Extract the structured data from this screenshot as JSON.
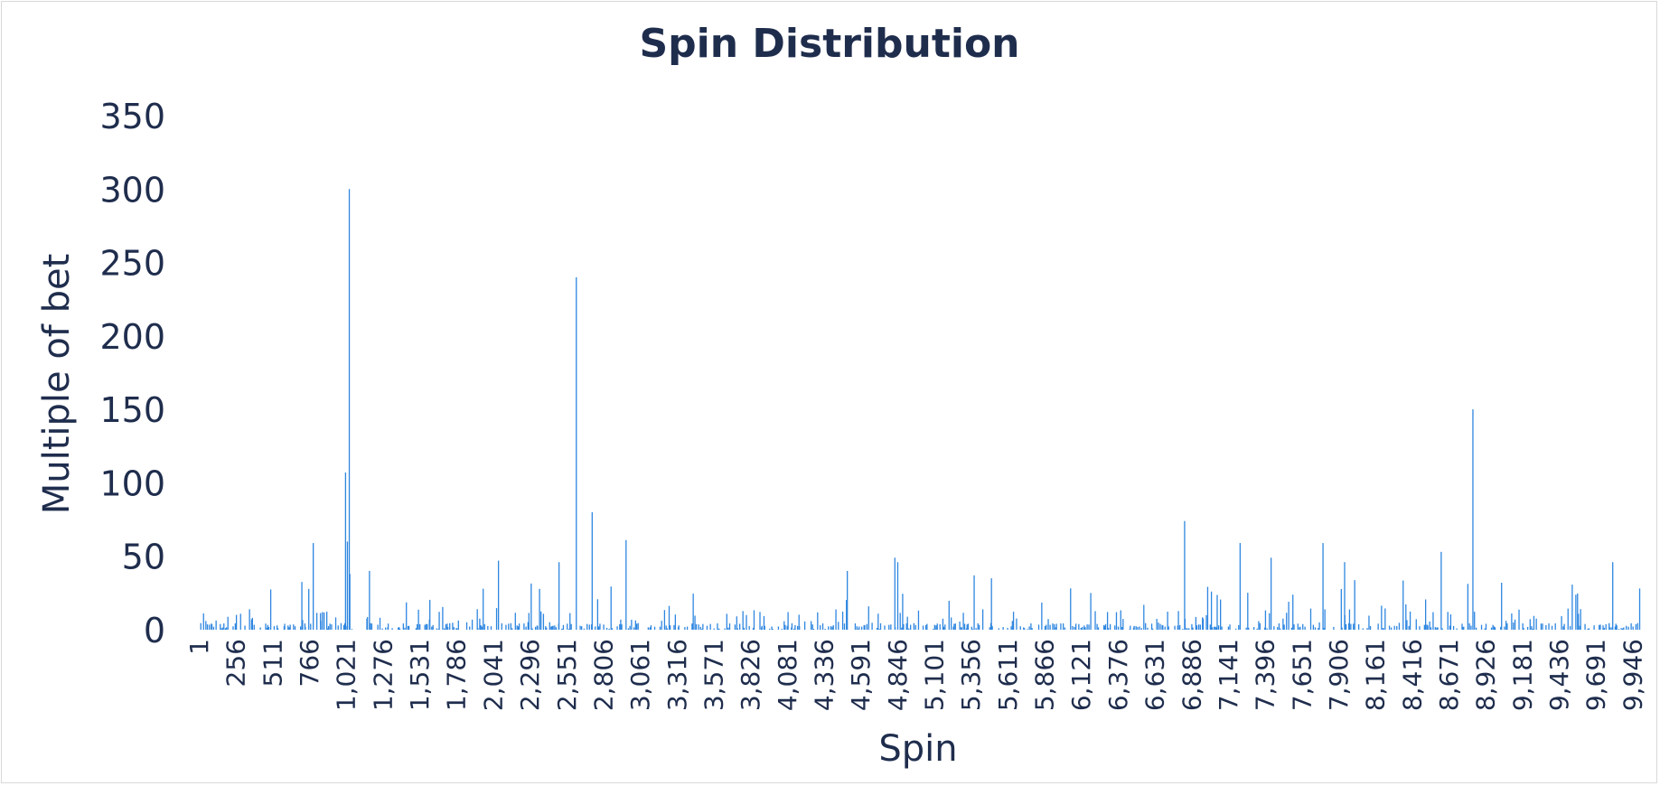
{
  "chart_data": {
    "type": "bar",
    "title": "Spin Distribution",
    "xlabel": "Spin",
    "ylabel": "Multiple of bet",
    "ylim": [
      0,
      350
    ],
    "yticks": [
      "0",
      "50",
      "100",
      "150",
      "200",
      "250",
      "300",
      "350"
    ],
    "x_tick_labels": [
      "1",
      "256",
      "511",
      "766",
      "1,021",
      "1,276",
      "1,531",
      "1,786",
      "2,041",
      "2,296",
      "2,551",
      "2,806",
      "3,061",
      "3,316",
      "3,571",
      "3,826",
      "4,081",
      "4,336",
      "4,591",
      "4,846",
      "5,101",
      "5,356",
      "5,611",
      "5,866",
      "6,121",
      "6,376",
      "6,631",
      "6,886",
      "7,141",
      "7,396",
      "7,651",
      "7,906",
      "8,161",
      "8,416",
      "8,671",
      "8,926",
      "9,181",
      "9,436",
      "9,691",
      "9,946"
    ],
    "x_range": [
      1,
      10000
    ],
    "bar_color": "#2e86e0",
    "grid": false,
    "legend": "none",
    "notable_points": [
      {
        "x": 1019,
        "y": 107
      },
      {
        "x": 1032,
        "y": 60
      },
      {
        "x": 1045,
        "y": 300
      },
      {
        "x": 1049,
        "y": 38
      },
      {
        "x": 2620,
        "y": 240
      },
      {
        "x": 2730,
        "y": 80
      },
      {
        "x": 2965,
        "y": 61
      },
      {
        "x": 6840,
        "y": 74
      },
      {
        "x": 8840,
        "y": 150
      },
      {
        "x": 795,
        "y": 59
      },
      {
        "x": 2080,
        "y": 47
      },
      {
        "x": 4830,
        "y": 49
      },
      {
        "x": 7225,
        "y": 59
      },
      {
        "x": 7800,
        "y": 59
      },
      {
        "x": 8620,
        "y": 53
      },
      {
        "x": 9810,
        "y": 46
      },
      {
        "x": 7440,
        "y": 49
      },
      {
        "x": 7950,
        "y": 46
      },
      {
        "x": 4850,
        "y": 46
      },
      {
        "x": 2500,
        "y": 46
      },
      {
        "x": 4500,
        "y": 40
      },
      {
        "x": 1185,
        "y": 40
      },
      {
        "x": 3800,
        "y": 10
      },
      {
        "x": 5380,
        "y": 37
      },
      {
        "x": 5500,
        "y": 35
      }
    ]
  }
}
